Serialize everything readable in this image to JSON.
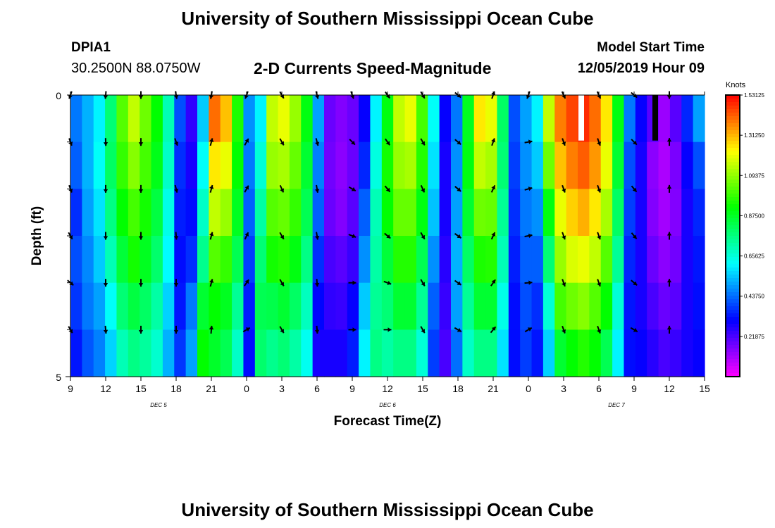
{
  "header": {
    "main_title": "University of Southern Mississippi Ocean Cube",
    "station_id": "DPIA1",
    "station_coords": "30.2500N 88.0750W",
    "chart_title": "2-D Currents Speed-Magnitude",
    "model_start_label": "Model Start Time",
    "model_start_value": "12/05/2019 Hour 09"
  },
  "footer": {
    "title": "University of Southern Mississippi Ocean Cube"
  },
  "chart_data": {
    "type": "heatmap",
    "title": "2-D Currents Speed-Magnitude",
    "xlabel": "Forecast Time(Z)",
    "ylabel": "Depth (ft)",
    "x_tick_labels": [
      "9",
      "12",
      "15",
      "18",
      "21",
      "0",
      "3",
      "6",
      "9",
      "12",
      "15",
      "18",
      "21",
      "0",
      "3",
      "6",
      "9",
      "12",
      "15"
    ],
    "x_tick_hours": [
      0,
      3,
      6,
      9,
      12,
      15,
      18,
      21,
      24,
      27,
      30,
      33,
      36,
      39,
      42,
      45,
      48,
      51,
      54
    ],
    "x_range_hours": [
      0,
      54
    ],
    "date_labels": [
      {
        "label": "DEC 5",
        "hour": 7.5
      },
      {
        "label": "DEC 6",
        "hour": 27
      },
      {
        "label": "DEC 7",
        "hour": 46.5
      }
    ],
    "y_tick_labels": [
      "0",
      "5"
    ],
    "ylim": [
      0,
      5
    ],
    "depth_rows": [
      0,
      1,
      2,
      3,
      4,
      5
    ],
    "colorbar": {
      "title": "Knots",
      "range": [
        0,
        1.53125
      ],
      "tick_labels": [
        "1.53125",
        "1.31250",
        "1.09375",
        "0.87500",
        "0.65625",
        "0.43750",
        "0.21875"
      ],
      "tick_values": [
        1.53125,
        1.3125,
        1.09375,
        0.875,
        0.65625,
        0.4375,
        0.21875
      ]
    },
    "speed_profile_knots": [
      [
        0.45,
        0.42,
        0.36,
        0.4,
        0.37,
        0.33
      ],
      [
        0.52,
        0.52,
        0.5,
        0.47,
        0.45,
        0.41
      ],
      [
        0.6,
        0.62,
        0.58,
        0.55,
        0.5,
        0.46
      ],
      [
        0.78,
        0.8,
        0.76,
        0.7,
        0.62,
        0.56
      ],
      [
        1.02,
        0.98,
        0.92,
        0.85,
        0.78,
        0.7
      ],
      [
        1.15,
        1.08,
        1.0,
        0.94,
        0.84,
        0.76
      ],
      [
        1.05,
        1.0,
        0.94,
        0.88,
        0.8,
        0.73
      ],
      [
        0.92,
        0.89,
        0.84,
        0.79,
        0.72,
        0.67
      ],
      [
        0.7,
        0.68,
        0.64,
        0.61,
        0.56,
        0.52
      ],
      [
        0.4,
        0.36,
        0.34,
        0.32,
        0.33,
        0.37
      ],
      [
        0.25,
        0.28,
        0.32,
        0.36,
        0.45,
        0.5
      ],
      [
        0.55,
        0.62,
        0.68,
        0.75,
        0.86,
        0.92
      ],
      [
        1.4,
        1.25,
        1.15,
        1.02,
        0.92,
        0.87
      ],
      [
        1.3,
        1.2,
        1.1,
        0.98,
        0.88,
        0.82
      ],
      [
        0.95,
        0.92,
        0.88,
        0.82,
        0.74,
        0.68
      ],
      [
        0.48,
        0.45,
        0.42,
        0.38,
        0.34,
        0.32
      ],
      [
        0.6,
        0.66,
        0.72,
        0.78,
        0.82,
        0.79
      ],
      [
        1.15,
        1.1,
        1.02,
        0.94,
        0.83,
        0.75
      ],
      [
        1.2,
        1.12,
        1.04,
        0.96,
        0.86,
        0.78
      ],
      [
        1.1,
        1.04,
        0.98,
        0.9,
        0.8,
        0.72
      ],
      [
        0.9,
        0.86,
        0.82,
        0.76,
        0.69,
        0.63
      ],
      [
        0.5,
        0.46,
        0.42,
        0.36,
        0.31,
        0.28
      ],
      [
        0.18,
        0.17,
        0.18,
        0.22,
        0.25,
        0.28
      ],
      [
        0.15,
        0.14,
        0.15,
        0.2,
        0.24,
        0.28
      ],
      [
        0.18,
        0.18,
        0.2,
        0.24,
        0.3,
        0.34
      ],
      [
        0.3,
        0.35,
        0.42,
        0.48,
        0.55,
        0.6
      ],
      [
        0.6,
        0.65,
        0.7,
        0.72,
        0.74,
        0.76
      ],
      [
        0.9,
        0.94,
        0.92,
        0.85,
        0.78,
        0.72
      ],
      [
        1.15,
        1.1,
        1.04,
        0.96,
        0.86,
        0.76
      ],
      [
        1.2,
        1.12,
        1.04,
        0.96,
        0.86,
        0.76
      ],
      [
        1.0,
        0.96,
        0.9,
        0.82,
        0.74,
        0.66
      ],
      [
        0.62,
        0.58,
        0.54,
        0.48,
        0.42,
        0.38
      ],
      [
        0.3,
        0.28,
        0.28,
        0.26,
        0.24,
        0.22
      ],
      [
        0.45,
        0.48,
        0.5,
        0.52,
        0.5,
        0.44
      ],
      [
        0.88,
        0.9,
        0.86,
        0.8,
        0.74,
        0.68
      ],
      [
        1.25,
        1.15,
        1.05,
        0.95,
        0.86,
        0.76
      ],
      [
        1.2,
        1.12,
        1.04,
        0.96,
        0.86,
        0.76
      ],
      [
        0.8,
        0.78,
        0.74,
        0.7,
        0.64,
        0.58
      ],
      [
        0.4,
        0.38,
        0.36,
        0.34,
        0.32,
        0.32
      ],
      [
        0.5,
        0.48,
        0.45,
        0.42,
        0.4,
        0.38
      ],
      [
        0.6,
        0.55,
        0.48,
        0.42,
        0.36,
        0.33
      ],
      [
        1.15,
        1.05,
        0.9,
        0.78,
        0.66,
        0.56
      ],
      [
        1.38,
        1.3,
        1.2,
        1.1,
        1.0,
        0.86
      ],
      [
        1.45,
        1.38,
        1.28,
        1.18,
        1.05,
        0.92
      ],
      [
        1.48,
        1.42,
        1.32,
        1.2,
        1.08,
        0.96
      ],
      [
        1.4,
        1.35,
        1.25,
        1.15,
        1.02,
        0.92
      ],
      [
        1.25,
        1.2,
        1.12,
        1.02,
        0.92,
        0.82
      ],
      [
        0.9,
        0.86,
        0.8,
        0.74,
        0.66,
        0.6
      ],
      [
        0.45,
        0.4,
        0.38,
        0.35,
        0.33,
        0.32
      ],
      [
        0.3,
        0.28,
        0.28,
        0.28,
        0.28,
        0.3
      ],
      [
        0.2,
        0.14,
        0.15,
        0.18,
        0.22,
        0.26
      ],
      [
        0.12,
        0.1,
        0.11,
        0.14,
        0.18,
        0.22
      ],
      [
        0.2,
        0.16,
        0.15,
        0.17,
        0.2,
        0.24
      ],
      [
        0.35,
        0.3,
        0.28,
        0.28,
        0.28,
        0.28
      ],
      [
        0.5,
        0.4,
        0.35,
        0.33,
        0.32,
        0.3
      ]
    ],
    "arrow_directions_deg": [
      [
        200,
        160,
        160,
        150,
        130,
        150
      ],
      [
        185,
        178,
        180,
        180,
        180,
        175
      ],
      [
        180,
        180,
        180,
        180,
        180,
        180
      ],
      [
        170,
        160,
        165,
        175,
        180,
        180
      ],
      [
        190,
        15,
        15,
        15,
        15,
        5
      ],
      [
        200,
        30,
        30,
        25,
        35,
        60
      ],
      [
        150,
        150,
        155,
        150,
        150,
        150
      ],
      [
        165,
        165,
        170,
        170,
        175,
        175
      ],
      [
        160,
        135,
        120,
        110,
        90,
        90
      ],
      [
        145,
        145,
        140,
        130,
        110,
        90
      ],
      [
        150,
        150,
        155,
        150,
        150,
        150
      ],
      [
        130,
        130,
        130,
        125,
        125,
        120
      ],
      [
        20,
        20,
        25,
        25,
        35,
        40
      ],
      [
        200,
        80,
        75,
        80,
        85,
        60
      ],
      [
        155,
        160,
        160,
        160,
        160,
        160
      ],
      [
        155,
        160,
        160,
        160,
        160,
        160
      ],
      [
        130,
        135,
        140,
        140,
        130,
        120
      ],
      [
        180,
        0,
        0,
        0,
        0,
        0
      ]
    ],
    "arrow_hours": [
      0,
      3,
      6,
      9,
      12,
      15,
      18,
      21,
      24,
      27,
      30,
      33,
      36,
      39,
      42,
      45,
      48,
      51
    ],
    "missing_cells": [
      {
        "hour": 43.5,
        "depth_row": 0,
        "color": "#ffffff"
      },
      {
        "hour": 49.8,
        "depth_row": 0,
        "color": "#000000"
      }
    ]
  }
}
